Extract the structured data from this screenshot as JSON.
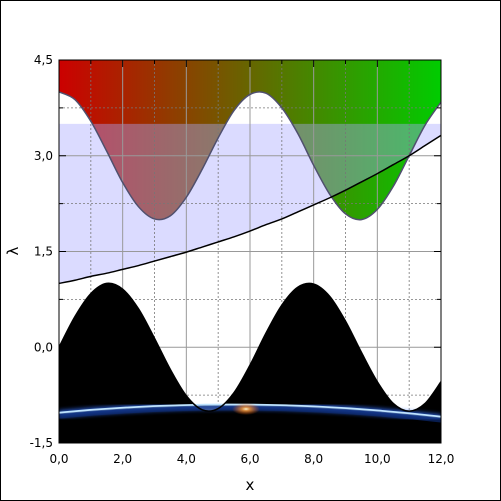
{
  "chart_data": {
    "type": "line",
    "x_label": "x",
    "y_label": "λ",
    "x": [
      0,
      0.5,
      1,
      1.5,
      2,
      2.5,
      3,
      3.5,
      4,
      4.5,
      5,
      5.5,
      6,
      6.5,
      7,
      7.5,
      8,
      8.5,
      9,
      9.5,
      10,
      10.5,
      11,
      11.5,
      12
    ],
    "series": [
      {
        "color": "#50506e",
        "fill": "above",
        "gradient": [
          "#cc0000",
          "#00cc00"
        ],
        "values": [
          4.0,
          3.88,
          3.54,
          3.07,
          2.58,
          2.2,
          2.01,
          2.06,
          2.35,
          2.79,
          3.28,
          3.71,
          3.96,
          3.98,
          3.75,
          3.35,
          2.85,
          2.4,
          2.09,
          2.0,
          2.16,
          2.52,
          3.0,
          3.48,
          3.84
        ]
      },
      {
        "color": "#000000",
        "fill": "band",
        "fill_to": 3.5,
        "fill_color": "rgba(170,170,255,0.42)",
        "values": [
          1.0,
          1.05,
          1.11,
          1.16,
          1.22,
          1.28,
          1.35,
          1.42,
          1.49,
          1.57,
          1.65,
          1.73,
          1.82,
          1.92,
          2.01,
          2.12,
          2.23,
          2.34,
          2.46,
          2.59,
          2.72,
          2.86,
          3.0,
          3.16,
          3.32
        ]
      },
      {
        "color": "#000000",
        "fill": "below",
        "fill_color": "#000000",
        "values": [
          0,
          0.48,
          0.84,
          1.0,
          0.91,
          0.6,
          0.14,
          -0.35,
          -0.76,
          -0.98,
          -0.96,
          -0.71,
          -0.28,
          0.22,
          0.66,
          0.94,
          0.99,
          0.8,
          0.41,
          -0.08,
          -0.54,
          -0.88,
          -1.0,
          -0.88,
          -0.54
        ]
      }
    ],
    "xlim": [
      0,
      12
    ],
    "ylim": [
      -1.5,
      4.5
    ],
    "xticks": [
      {
        "value": 0,
        "label": "0,0"
      },
      {
        "value": 2,
        "label": "2,0"
      },
      {
        "value": 4,
        "label": "4,0"
      },
      {
        "value": 6,
        "label": "6,0"
      },
      {
        "value": 8,
        "label": "8,0"
      },
      {
        "value": 10,
        "label": "10,0"
      },
      {
        "value": 12,
        "label": "12,0"
      }
    ],
    "yticks": [
      {
        "value": -1.5,
        "label": "-1,5"
      },
      {
        "value": 0,
        "label": "0,0"
      },
      {
        "value": 1.5,
        "label": "1,5"
      },
      {
        "value": 3,
        "label": "3,0"
      },
      {
        "value": 4.5,
        "label": "4,5"
      }
    ],
    "minor_xticks": [
      1,
      3,
      5,
      7,
      9,
      11
    ],
    "minor_yticks": [
      -0.75,
      0.75,
      2.25,
      3.75
    ],
    "grid": true
  }
}
